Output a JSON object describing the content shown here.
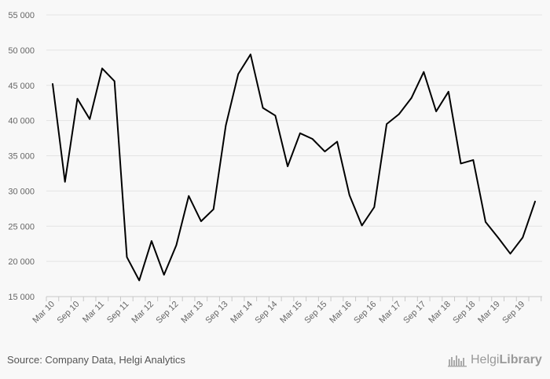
{
  "chart_data": {
    "type": "line",
    "title": "",
    "xlabel": "",
    "ylabel": "",
    "ylim": [
      15000,
      55000
    ],
    "y_ticks": [
      15000,
      20000,
      25000,
      30000,
      35000,
      40000,
      45000,
      50000,
      55000
    ],
    "y_tick_labels": [
      "15 000",
      "20 000",
      "25 000",
      "30 000",
      "35 000",
      "40 000",
      "45 000",
      "50 000",
      "55 000"
    ],
    "x_tick_labels": [
      "Mar 10",
      "Sep 10",
      "Mar 11",
      "Sep 11",
      "Mar 12",
      "Sep 12",
      "Mar 13",
      "Sep 13",
      "Mar 14",
      "Sep 14",
      "Mar 15",
      "Sep 15",
      "Mar 16",
      "Sep 16",
      "Mar 17",
      "Sep 17",
      "Mar 18",
      "Sep 18",
      "Mar 19",
      "Sep 19"
    ],
    "grid": true,
    "line_color": "#000000",
    "x": [
      "Mar 10",
      "Jun 10",
      "Sep 10",
      "Dec 10",
      "Mar 11",
      "Jun 11",
      "Sep 11",
      "Dec 11",
      "Mar 12",
      "Jun 12",
      "Sep 12",
      "Dec 12",
      "Mar 13",
      "Jun 13",
      "Sep 13",
      "Dec 13",
      "Mar 14",
      "Jun 14",
      "Sep 14",
      "Dec 14",
      "Mar 15",
      "Jun 15",
      "Sep 15",
      "Dec 15",
      "Mar 16",
      "Jun 16",
      "Sep 16",
      "Dec 16",
      "Mar 17",
      "Jun 17",
      "Sep 17",
      "Dec 17",
      "Mar 18",
      "Jun 18",
      "Sep 18",
      "Dec 18",
      "Mar 19",
      "Jun 19",
      "Sep 19",
      "Dec 19"
    ],
    "values": [
      45200,
      31300,
      43100,
      40200,
      47400,
      45600,
      20600,
      17300,
      22900,
      18100,
      22300,
      29300,
      25700,
      27400,
      39300,
      46600,
      49400,
      41800,
      40700,
      33500,
      38200,
      37400,
      35600,
      37000,
      29400,
      25100,
      27700,
      39500,
      40900,
      43200,
      46900,
      41300,
      44100,
      33900,
      34400,
      25600,
      23400,
      21100,
      23400,
      28500
    ]
  },
  "footer": {
    "source": "Source: Company Data, Helgi Analytics",
    "logo_text_regular": "Helgi",
    "logo_text_bold": "Library"
  }
}
